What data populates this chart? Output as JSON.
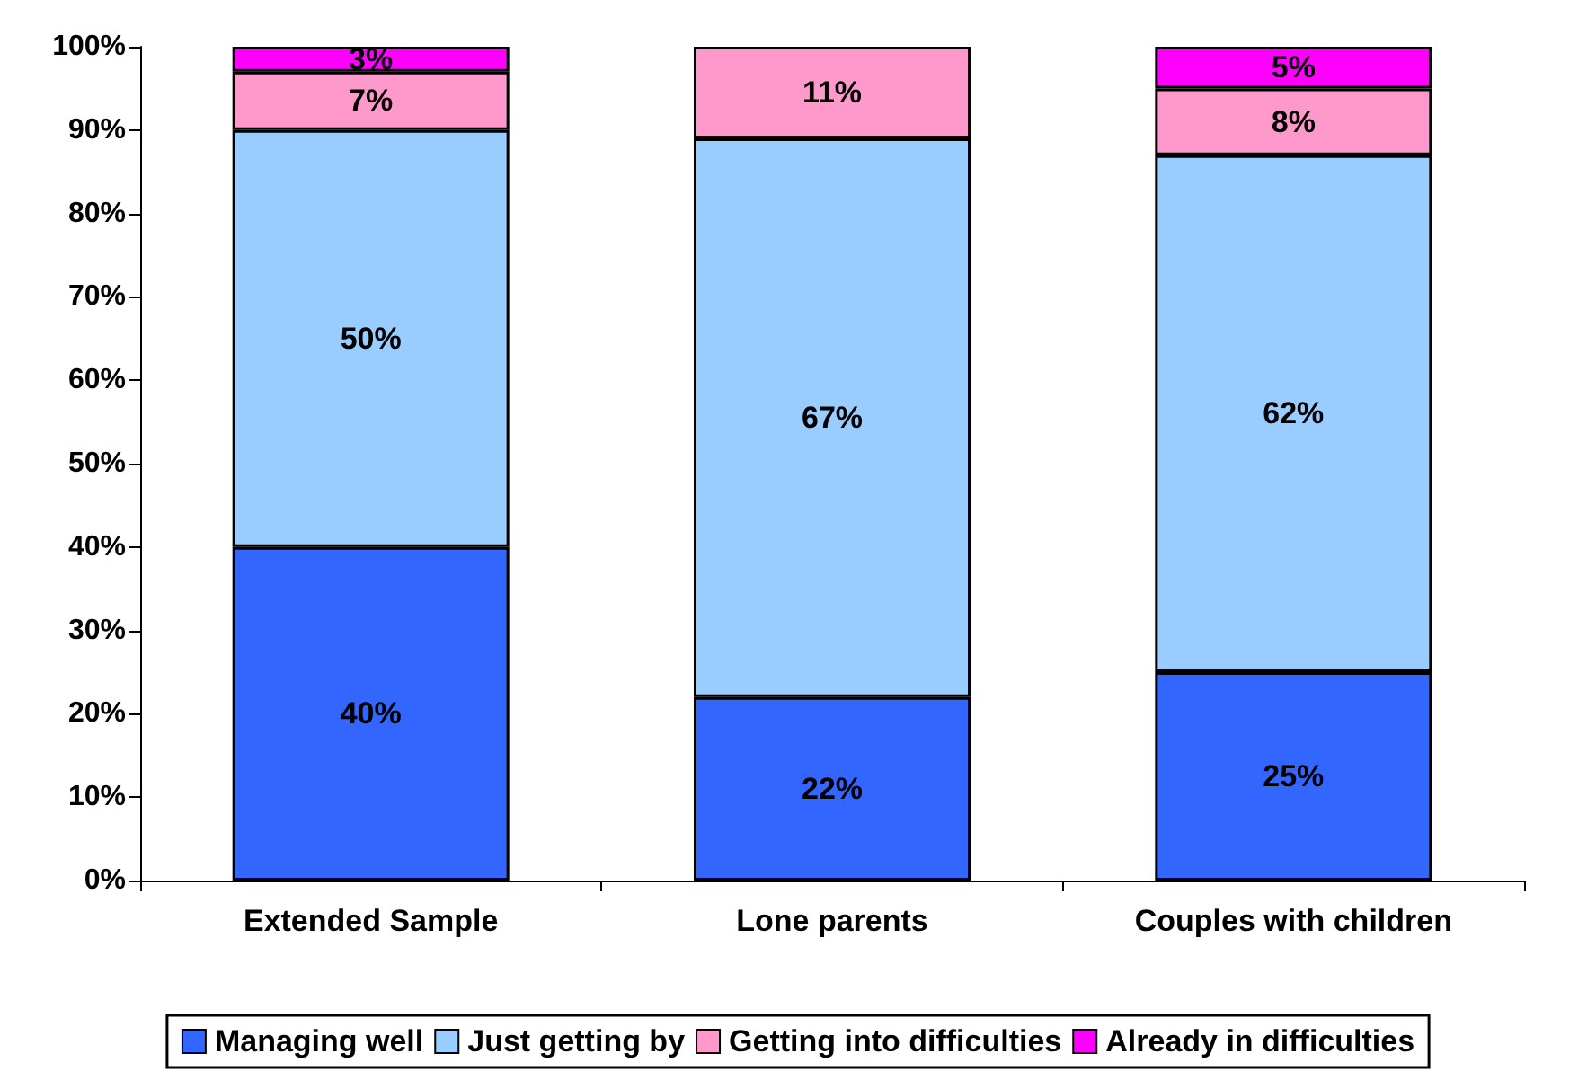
{
  "chart_data": {
    "type": "bar",
    "stacked": true,
    "categories": [
      "Extended Sample",
      "Lone parents",
      "Couples with children"
    ],
    "series": [
      {
        "name": "Managing well",
        "color": "#3366ff",
        "values": [
          40,
          22,
          25
        ],
        "value_labels": [
          "40%",
          "22%",
          "25%"
        ]
      },
      {
        "name": "Just getting by",
        "color": "#99ccff",
        "values": [
          50,
          67,
          62
        ],
        "value_labels": [
          "50%",
          "67%",
          "62%"
        ]
      },
      {
        "name": "Getting into difficulties",
        "color": "#ff99cc",
        "values": [
          7,
          11,
          8
        ],
        "value_labels": [
          "7%",
          "11%",
          "8%"
        ]
      },
      {
        "name": "Already in difficulties",
        "color": "#ff00ff",
        "values": [
          3,
          null,
          5
        ],
        "value_labels": [
          "3%",
          null,
          "5%"
        ]
      }
    ],
    "ylim": [
      0,
      100
    ],
    "yticks": [
      {
        "value": 0,
        "label": "0%"
      },
      {
        "value": 10,
        "label": "10%"
      },
      {
        "value": 20,
        "label": "20%"
      },
      {
        "value": 30,
        "label": "30%"
      },
      {
        "value": 40,
        "label": "40%"
      },
      {
        "value": 50,
        "label": "50%"
      },
      {
        "value": 60,
        "label": "60%"
      },
      {
        "value": 70,
        "label": "70%"
      },
      {
        "value": 80,
        "label": "80%"
      },
      {
        "value": 90,
        "label": "90%"
      },
      {
        "value": 100,
        "label": "100%"
      }
    ],
    "grid": false,
    "legend": "bottom"
  }
}
